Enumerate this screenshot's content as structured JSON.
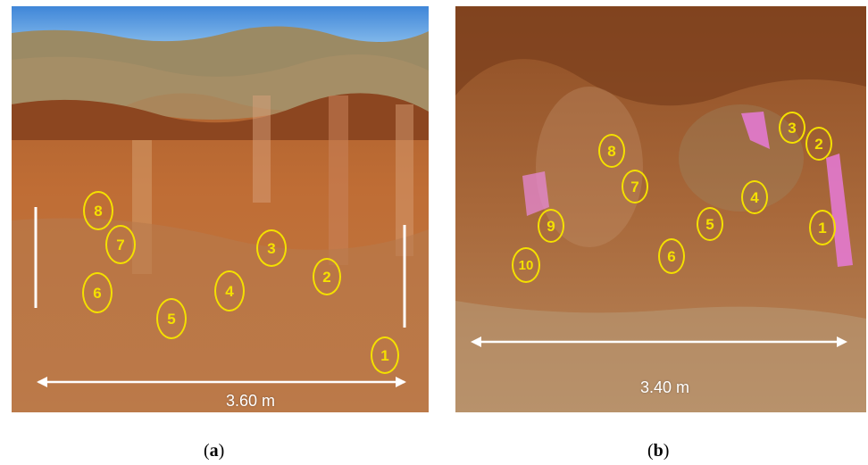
{
  "panel_a": {
    "caption_open": "(",
    "caption_letter": "a",
    "caption_close": ")",
    "scale_label": "3.60 m",
    "markers": [
      "1",
      "2",
      "3",
      "4",
      "5",
      "6",
      "7",
      "8"
    ]
  },
  "panel_b": {
    "caption_open": "(",
    "caption_letter": "b",
    "caption_close": ")",
    "scale_label": "3.40 m",
    "markers": [
      "1",
      "2",
      "3",
      "4",
      "5",
      "6",
      "7",
      "8",
      "9",
      "10"
    ]
  },
  "colors": {
    "marker": "#f4e000",
    "scale_line": "#ffffff",
    "sky": "#4f92dc",
    "soil": "#b8662e"
  }
}
